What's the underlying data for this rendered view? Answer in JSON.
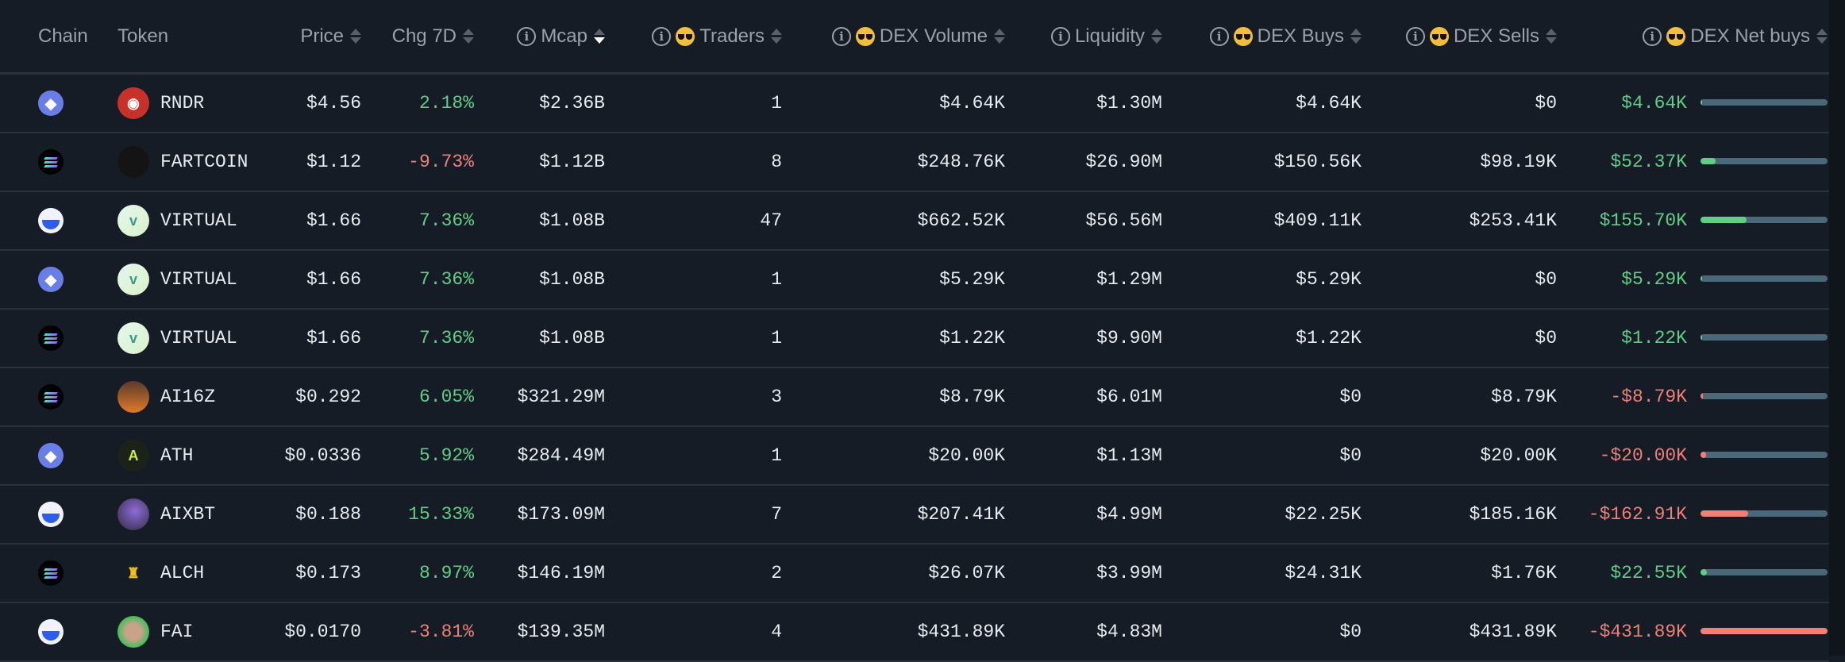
{
  "header": {
    "chain": "Chain",
    "token": "Token",
    "price": "Price",
    "chg7d": "Chg 7D",
    "mcap": "Mcap",
    "traders": "Traders",
    "dex_volume": "DEX Volume",
    "liquidity": "Liquidity",
    "dex_buys": "DEX Buys",
    "dex_sells": "DEX Sells",
    "dex_net_buys": "DEX Net buys",
    "sorted_column": "Mcap",
    "sort_direction": "descending"
  },
  "colors": {
    "positive": "#5fcf85",
    "negative": "#f07f76",
    "bar_track": "#4a6878",
    "background": "#161c25"
  },
  "rows": [
    {
      "chain": "ethereum",
      "token": "RNDR",
      "price": "$4.56",
      "chg7d": "2.18%",
      "chg_dir": "up",
      "mcap": "$2.36B",
      "traders": "1",
      "dex_volume": "$4.64K",
      "liquidity": "$1.30M",
      "dex_buys": "$4.64K",
      "dex_sells": "$0",
      "net_buys": "$4.64K",
      "net_dir": "up",
      "net_bar_pct": 1.1
    },
    {
      "chain": "solana",
      "token": "FARTCOIN",
      "price": "$1.12",
      "chg7d": "-9.73%",
      "chg_dir": "down",
      "mcap": "$1.12B",
      "traders": "8",
      "dex_volume": "$248.76K",
      "liquidity": "$26.90M",
      "dex_buys": "$150.56K",
      "dex_sells": "$98.19K",
      "net_buys": "$52.37K",
      "net_dir": "up",
      "net_bar_pct": 12.1
    },
    {
      "chain": "base",
      "token": "VIRTUAL",
      "price": "$1.66",
      "chg7d": "7.36%",
      "chg_dir": "up",
      "mcap": "$1.08B",
      "traders": "47",
      "dex_volume": "$662.52K",
      "liquidity": "$56.56M",
      "dex_buys": "$409.11K",
      "dex_sells": "$253.41K",
      "net_buys": "$155.70K",
      "net_dir": "up",
      "net_bar_pct": 36
    },
    {
      "chain": "ethereum",
      "token": "VIRTUAL",
      "price": "$1.66",
      "chg7d": "7.36%",
      "chg_dir": "up",
      "mcap": "$1.08B",
      "traders": "1",
      "dex_volume": "$5.29K",
      "liquidity": "$1.29M",
      "dex_buys": "$5.29K",
      "dex_sells": "$0",
      "net_buys": "$5.29K",
      "net_dir": "up",
      "net_bar_pct": 1.2
    },
    {
      "chain": "solana",
      "token": "VIRTUAL",
      "price": "$1.66",
      "chg7d": "7.36%",
      "chg_dir": "up",
      "mcap": "$1.08B",
      "traders": "1",
      "dex_volume": "$1.22K",
      "liquidity": "$9.90M",
      "dex_buys": "$1.22K",
      "dex_sells": "$0",
      "net_buys": "$1.22K",
      "net_dir": "up",
      "net_bar_pct": 0.3
    },
    {
      "chain": "solana",
      "token": "AI16Z",
      "price": "$0.292",
      "chg7d": "6.05%",
      "chg_dir": "up",
      "mcap": "$321.29M",
      "traders": "3",
      "dex_volume": "$8.79K",
      "liquidity": "$6.01M",
      "dex_buys": "$0",
      "dex_sells": "$8.79K",
      "net_buys": "-$8.79K",
      "net_dir": "down",
      "net_bar_pct": 2
    },
    {
      "chain": "ethereum",
      "token": "ATH",
      "price": "$0.0336",
      "chg7d": "5.92%",
      "chg_dir": "up",
      "mcap": "$284.49M",
      "traders": "1",
      "dex_volume": "$20.00K",
      "liquidity": "$1.13M",
      "dex_buys": "$0",
      "dex_sells": "$20.00K",
      "net_buys": "-$20.00K",
      "net_dir": "down",
      "net_bar_pct": 4.6
    },
    {
      "chain": "base",
      "token": "AIXBT",
      "price": "$0.188",
      "chg7d": "15.33%",
      "chg_dir": "up",
      "mcap": "$173.09M",
      "traders": "7",
      "dex_volume": "$207.41K",
      "liquidity": "$4.99M",
      "dex_buys": "$22.25K",
      "dex_sells": "$185.16K",
      "net_buys": "-$162.91K",
      "net_dir": "down",
      "net_bar_pct": 37.7
    },
    {
      "chain": "solana",
      "token": "ALCH",
      "price": "$0.173",
      "chg7d": "8.97%",
      "chg_dir": "up",
      "mcap": "$146.19M",
      "traders": "2",
      "dex_volume": "$26.07K",
      "liquidity": "$3.99M",
      "dex_buys": "$24.31K",
      "dex_sells": "$1.76K",
      "net_buys": "$22.55K",
      "net_dir": "up",
      "net_bar_pct": 5.2
    },
    {
      "chain": "base",
      "token": "FAI",
      "price": "$0.0170",
      "chg7d": "-3.81%",
      "chg_dir": "down",
      "mcap": "$139.35M",
      "traders": "4",
      "dex_volume": "$431.89K",
      "liquidity": "$4.83M",
      "dex_buys": "$0",
      "dex_sells": "$431.89K",
      "net_buys": "-$431.89K",
      "net_dir": "down",
      "net_bar_pct": 100
    }
  ]
}
